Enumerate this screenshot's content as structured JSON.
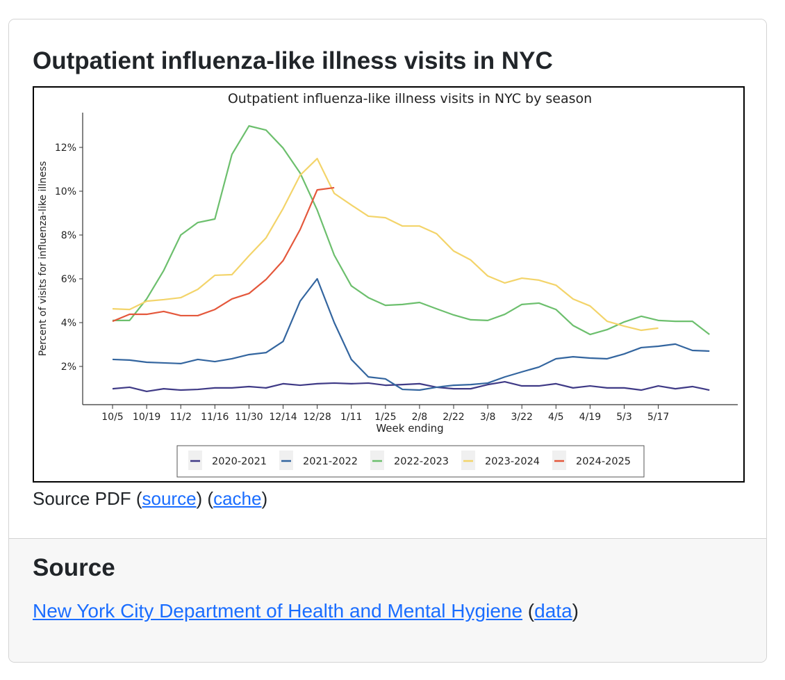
{
  "heading": "Outpatient influenza-like illness visits in NYC",
  "source_pdf": {
    "label": "Source PDF",
    "source_link": "source",
    "cache_link": "cache"
  },
  "source_section": {
    "heading": "Source",
    "org_link": "New York City Department of Health and Mental Hygiene",
    "data_link": "data"
  },
  "chart_data": {
    "type": "line",
    "title": "Outpatient influenza-like illness visits in NYC by season",
    "xlabel": "Week ending",
    "ylabel": "Percent of visits for influenza-like illness",
    "ylim": [
      0.25,
      13.6
    ],
    "yticks": [
      2,
      4,
      6,
      8,
      10,
      12
    ],
    "ytick_labels": [
      "2%",
      "4%",
      "6%",
      "8%",
      "10%",
      "12%"
    ],
    "xtick_labels": [
      "10/5",
      "10/19",
      "11/2",
      "11/16",
      "11/30",
      "12/14",
      "12/28",
      "1/11",
      "1/25",
      "2/8",
      "2/22",
      "3/8",
      "3/22",
      "4/5",
      "4/19",
      "5/3",
      "5/17"
    ],
    "x_unit": "week index from 10/5",
    "legend_position": "bottom-center",
    "series": [
      {
        "name": "2020-2021",
        "color": "#3f3a86",
        "values": [
          0.98,
          1.05,
          0.86,
          0.98,
          0.92,
          0.95,
          1.02,
          1.02,
          1.08,
          1.02,
          1.21,
          1.14,
          1.21,
          1.24,
          1.21,
          1.24,
          1.14,
          1.17,
          1.21,
          1.05,
          0.98,
          0.98,
          1.17,
          1.3,
          1.11,
          1.11,
          1.21,
          1.02,
          1.11,
          1.02,
          1.02,
          0.92,
          1.11,
          0.98,
          1.08,
          0.92
        ]
      },
      {
        "name": "2021-2022",
        "color": "#33659f",
        "values": [
          2.32,
          2.29,
          2.19,
          2.16,
          2.13,
          2.32,
          2.22,
          2.35,
          2.54,
          2.63,
          3.14,
          4.98,
          6.0,
          4.0,
          2.32,
          1.52,
          1.43,
          0.95,
          0.92,
          1.05,
          1.14,
          1.17,
          1.24,
          1.52,
          1.75,
          1.97,
          2.35,
          2.44,
          2.38,
          2.35,
          2.57,
          2.86,
          2.92,
          3.02,
          2.73,
          2.7
        ]
      },
      {
        "name": "2022-2023",
        "color": "#6cbf6d",
        "values": [
          4.1,
          4.1,
          5.08,
          6.38,
          8.0,
          8.57,
          8.73,
          11.68,
          12.98,
          12.79,
          11.97,
          10.83,
          9.14,
          7.08,
          5.68,
          5.14,
          4.79,
          4.83,
          4.92,
          4.63,
          4.35,
          4.13,
          4.1,
          4.38,
          4.83,
          4.89,
          4.6,
          3.87,
          3.46,
          3.68,
          4.03,
          4.29,
          4.1,
          4.06,
          4.06,
          3.46
        ]
      },
      {
        "name": "2023-2024",
        "color": "#f3d46a",
        "values": [
          4.63,
          4.6,
          4.98,
          5.05,
          5.14,
          5.52,
          6.16,
          6.19,
          7.05,
          7.87,
          9.21,
          10.73,
          11.49,
          9.9,
          9.37,
          8.86,
          8.79,
          8.41,
          8.41,
          8.06,
          7.27,
          6.86,
          6.13,
          5.81,
          6.03,
          5.94,
          5.71,
          5.08,
          4.76,
          4.06,
          3.84,
          3.65,
          3.75
        ]
      },
      {
        "name": "2024-2025",
        "color": "#e4573b",
        "values": [
          4.06,
          4.38,
          4.38,
          4.51,
          4.32,
          4.32,
          4.6,
          5.08,
          5.33,
          5.97,
          6.83,
          8.25,
          10.06,
          10.16
        ]
      }
    ]
  }
}
